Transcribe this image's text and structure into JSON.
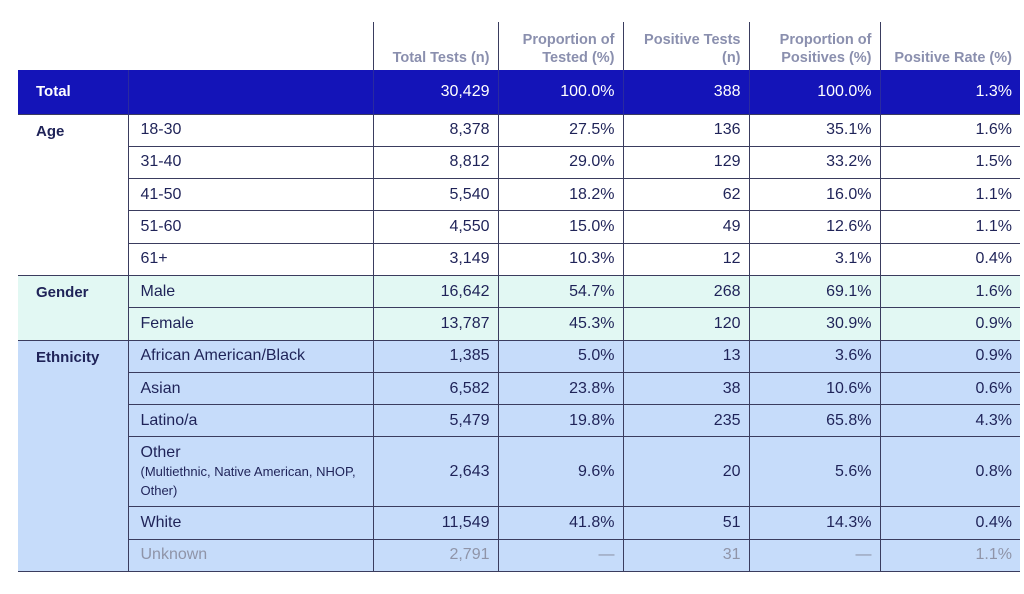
{
  "headers": {
    "total_tests": "Total Tests (n)",
    "proportion_tested": "Proportion of Tested (%)",
    "positive_tests": "Positive Tests (n)",
    "proportion_positives": "Proportion of Positives (%)",
    "positive_rate": "Positive Rate (%)"
  },
  "total": {
    "label": "Total",
    "cells": [
      "30,429",
      "100.0%",
      "388",
      "100.0%",
      "1.3%"
    ]
  },
  "groups": {
    "age": {
      "label": "Age",
      "rows": [
        {
          "label": "18-30",
          "cells": [
            "8,378",
            "27.5%",
            "136",
            "35.1%",
            "1.6%"
          ]
        },
        {
          "label": "31-40",
          "cells": [
            "8,812",
            "29.0%",
            "129",
            "33.2%",
            "1.5%"
          ]
        },
        {
          "label": "41-50",
          "cells": [
            "5,540",
            "18.2%",
            "62",
            "16.0%",
            "1.1%"
          ]
        },
        {
          "label": "51-60",
          "cells": [
            "4,550",
            "15.0%",
            "49",
            "12.6%",
            "1.1%"
          ]
        },
        {
          "label": "61+",
          "cells": [
            "3,149",
            "10.3%",
            "12",
            "3.1%",
            "0.4%"
          ]
        }
      ]
    },
    "gender": {
      "label": "Gender",
      "rows": [
        {
          "label": "Male",
          "cells": [
            "16,642",
            "54.7%",
            "268",
            "69.1%",
            "1.6%"
          ]
        },
        {
          "label": "Female",
          "cells": [
            "13,787",
            "45.3%",
            "120",
            "30.9%",
            "0.9%"
          ]
        }
      ]
    },
    "ethnicity": {
      "label": "Ethnicity",
      "rows": [
        {
          "label": "African American/Black",
          "cells": [
            "1,385",
            "5.0%",
            "13",
            "3.6%",
            "0.9%"
          ]
        },
        {
          "label": "Asian",
          "cells": [
            "6,582",
            "23.8%",
            "38",
            "10.6%",
            "0.6%"
          ]
        },
        {
          "label": "Latino/a",
          "cells": [
            "5,479",
            "19.8%",
            "235",
            "65.8%",
            "4.3%"
          ]
        },
        {
          "label": "Other",
          "note": "(Multiethnic, Native American, NHOP, Other)",
          "cells": [
            "2,643",
            "9.6%",
            "20",
            "5.6%",
            "0.8%"
          ]
        },
        {
          "label": "White",
          "cells": [
            "11,549",
            "41.8%",
            "51",
            "14.3%",
            "0.4%"
          ]
        },
        {
          "label": "Unknown",
          "cells": [
            "2,791",
            "—",
            "31",
            "—",
            "1.1%"
          ]
        }
      ]
    }
  },
  "colors": {
    "total_row": "#1414b8",
    "gender_band": "#e2f8f3",
    "ethnicity_band": "#c6dcfa",
    "text": "#1f2358",
    "header_text": "#8a8fae",
    "muted_text": "#8f94a8"
  }
}
